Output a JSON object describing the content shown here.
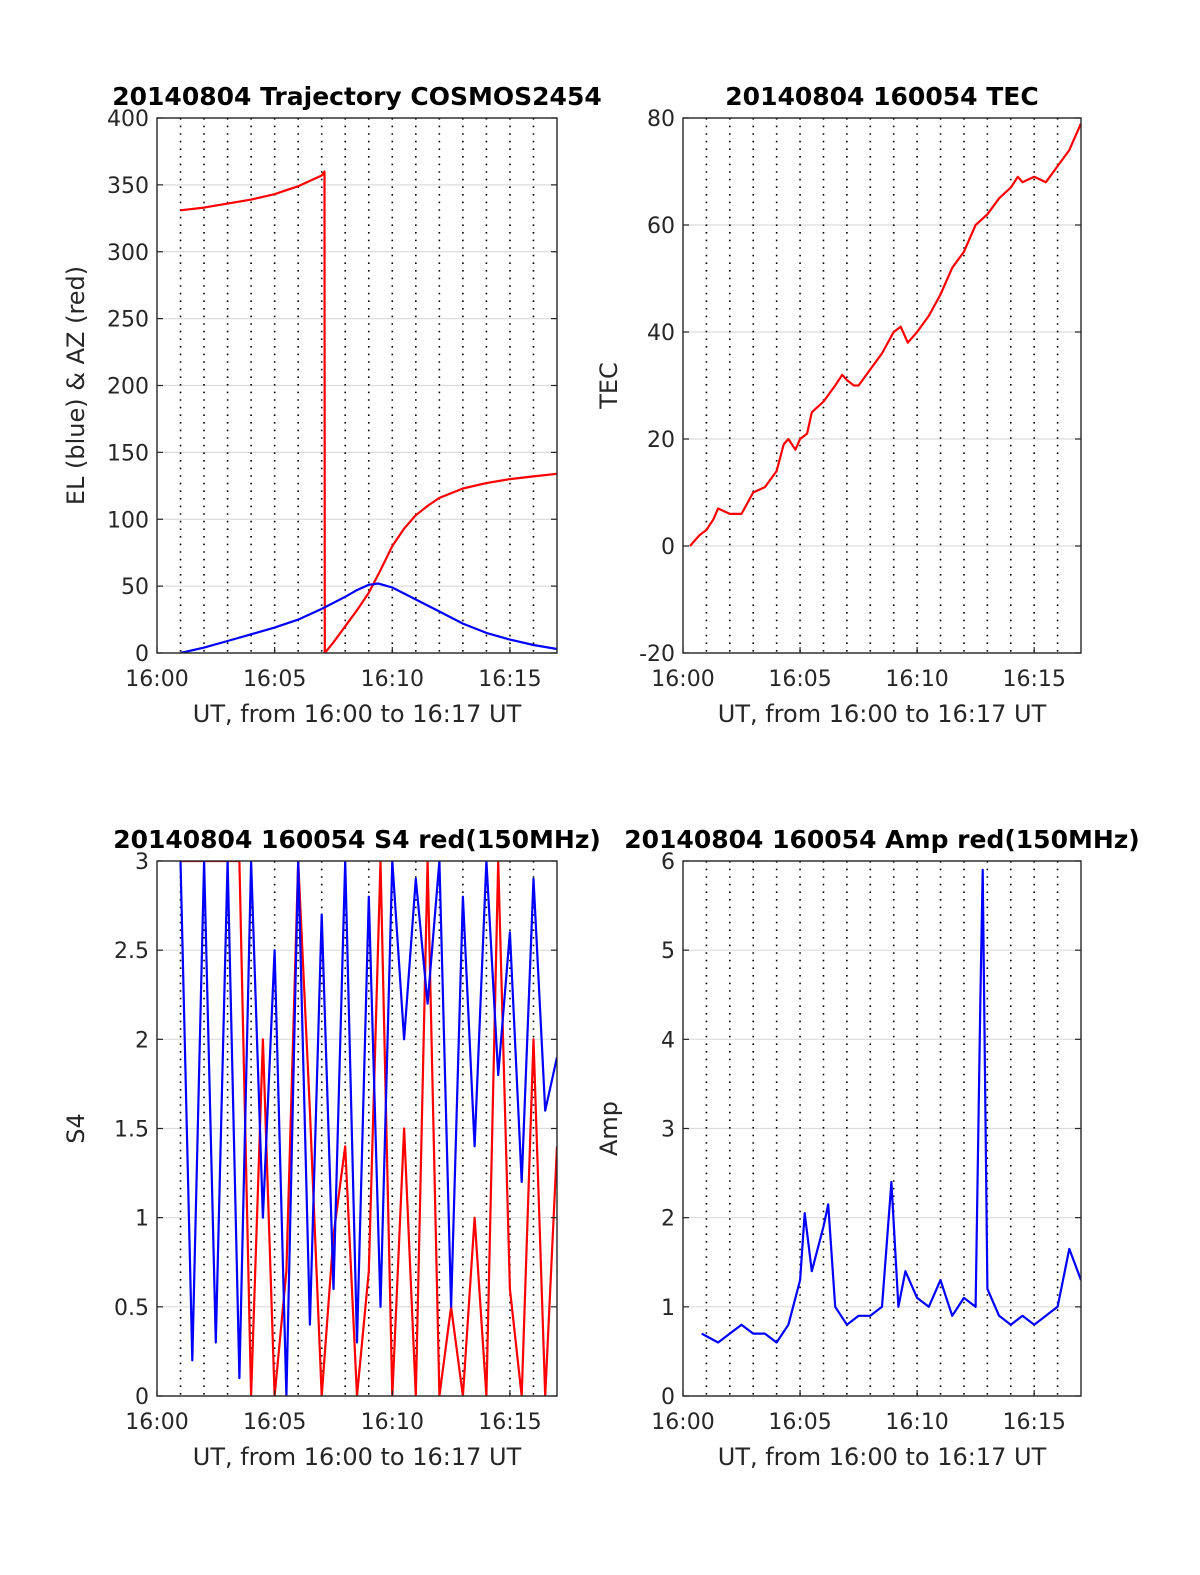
{
  "chart_data": [
    {
      "type": "line",
      "title": "20140804 Trajectory COSMOS2454",
      "xlabel": "UT, from 16:00 to 16:17 UT",
      "ylabel": "EL (blue) & AZ (red)",
      "xlim": [
        0,
        17
      ],
      "ylim": [
        0,
        400
      ],
      "xticks": [
        0,
        5,
        10,
        15
      ],
      "xtick_labels": [
        "16:00",
        "16:05",
        "16:10",
        "16:15"
      ],
      "yticks": [
        0,
        50,
        100,
        150,
        200,
        250,
        300,
        350,
        400
      ],
      "ytick_labels": [
        "0",
        "50",
        "100",
        "150",
        "200",
        "250",
        "300",
        "350",
        "400"
      ],
      "grid": true,
      "series": [
        {
          "color": "#ff0000",
          "x": [
            1.0,
            2.0,
            3.0,
            4.0,
            5.0,
            6.0,
            6.5,
            7.0,
            7.12,
            7.13,
            7.5,
            8.0,
            8.5,
            9.0,
            9.5,
            10.0,
            10.5,
            11.0,
            11.5,
            12.0,
            13.0,
            14.0,
            15.0,
            16.0,
            17.0
          ],
          "y": [
            331,
            333,
            336,
            339,
            343,
            349,
            353,
            357,
            360,
            0,
            8,
            20,
            32,
            45,
            62,
            80,
            93,
            103,
            110,
            116,
            123,
            127,
            130,
            132,
            134
          ]
        },
        {
          "color": "#0000ff",
          "x": [
            1.0,
            2.0,
            3.0,
            4.0,
            5.0,
            6.0,
            7.0,
            8.0,
            8.5,
            9.0,
            9.4,
            10.0,
            11.0,
            12.0,
            13.0,
            14.0,
            15.0,
            16.0,
            17.0
          ],
          "y": [
            0,
            4,
            9,
            14,
            19,
            25,
            33,
            42,
            47,
            51,
            52,
            49,
            40,
            31,
            22,
            15,
            10,
            6,
            3
          ]
        }
      ]
    },
    {
      "type": "line",
      "title": "20140804 160054 TEC",
      "xlabel": "UT, from 16:00 to 16:17 UT",
      "ylabel": "TEC",
      "xlim": [
        0,
        17
      ],
      "ylim": [
        -20,
        80
      ],
      "xticks": [
        0,
        5,
        10,
        15
      ],
      "xtick_labels": [
        "16:00",
        "16:05",
        "16:10",
        "16:15"
      ],
      "yticks": [
        -20,
        0,
        20,
        40,
        60,
        80
      ],
      "ytick_labels": [
        "-20",
        "0",
        "20",
        "40",
        "60",
        "80"
      ],
      "grid": true,
      "series": [
        {
          "color": "#ff0000",
          "x": [
            0.3,
            0.7,
            1.0,
            1.3,
            1.5,
            2.0,
            2.5,
            3.0,
            3.5,
            4.0,
            4.3,
            4.5,
            4.8,
            5.0,
            5.3,
            5.5,
            6.0,
            6.5,
            6.8,
            7.0,
            7.3,
            7.5,
            8.0,
            8.5,
            9.0,
            9.3,
            9.6,
            10.0,
            10.5,
            11.0,
            11.5,
            12.0,
            12.5,
            13.0,
            13.5,
            14.0,
            14.3,
            14.5,
            15.0,
            15.5,
            16.0,
            16.5,
            17.0
          ],
          "y": [
            0,
            2,
            3,
            5,
            7,
            6,
            6,
            10,
            11,
            14,
            19,
            20,
            18,
            20,
            21,
            25,
            27,
            30,
            32,
            31,
            30,
            30,
            33,
            36,
            40,
            41,
            38,
            40,
            43,
            47,
            52,
            55,
            60,
            62,
            65,
            67,
            69,
            68,
            69,
            68,
            71,
            74,
            79
          ]
        }
      ]
    },
    {
      "type": "line",
      "title": "20140804 160054 S4 red(150MHz)",
      "xlabel": "UT, from 16:00 to 16:17 UT",
      "ylabel": "S4",
      "xlim": [
        0,
        17
      ],
      "ylim": [
        0,
        3
      ],
      "xticks": [
        0,
        5,
        10,
        15
      ],
      "xtick_labels": [
        "16:00",
        "16:05",
        "16:10",
        "16:15"
      ],
      "yticks": [
        0,
        0.5,
        1,
        1.5,
        2,
        2.5,
        3
      ],
      "ytick_labels": [
        "0",
        "0.5",
        "1",
        "1.5",
        "2",
        "2.5",
        "3"
      ],
      "grid": true,
      "series": [
        {
          "color": "#ff0000",
          "x": [
            1.0,
            3.5,
            4.0,
            4.5,
            5.0,
            5.5,
            6.0,
            6.5,
            7.0,
            7.5,
            8.0,
            8.5,
            9.0,
            9.5,
            10.0,
            10.5,
            11.0,
            11.5,
            12.0,
            12.5,
            13.0,
            13.5,
            14.0,
            14.5,
            15.0,
            15.5,
            16.0,
            16.5,
            17.0
          ],
          "y": [
            3.0,
            3.0,
            0.0,
            2.0,
            0.0,
            0.7,
            3.0,
            1.6,
            0.0,
            0.9,
            1.4,
            0.0,
            0.7,
            3.0,
            0.0,
            1.5,
            0.0,
            3.0,
            0.0,
            0.5,
            0.0,
            1.0,
            0.0,
            3.0,
            0.6,
            0.0,
            2.0,
            0.0,
            1.4
          ]
        },
        {
          "color": "#0000ff",
          "x": [
            1.0,
            1.5,
            2.0,
            2.5,
            3.0,
            3.5,
            4.0,
            4.5,
            5.0,
            5.5,
            6.0,
            6.5,
            7.0,
            7.5,
            8.0,
            8.5,
            9.0,
            9.5,
            10.0,
            10.5,
            11.0,
            11.5,
            12.0,
            12.5,
            13.0,
            13.5,
            14.0,
            14.5,
            15.0,
            15.5,
            16.0,
            16.5,
            17.0
          ],
          "y": [
            3.0,
            0.2,
            3.0,
            0.3,
            3.0,
            0.1,
            3.0,
            1.0,
            2.5,
            0.0,
            3.0,
            0.4,
            2.7,
            0.6,
            3.0,
            0.3,
            2.8,
            0.5,
            3.0,
            2.0,
            2.9,
            2.2,
            3.0,
            0.5,
            2.8,
            1.4,
            3.0,
            1.8,
            2.6,
            1.2,
            2.9,
            1.6,
            1.9
          ]
        }
      ]
    },
    {
      "type": "line",
      "title": "20140804 160054 Amp red(150MHz)",
      "xlabel": "UT, from 16:00 to 16:17 UT",
      "ylabel": "Amp",
      "xlim": [
        0,
        17
      ],
      "ylim": [
        0,
        6
      ],
      "xticks": [
        0,
        5,
        10,
        15
      ],
      "xtick_labels": [
        "16:00",
        "16:05",
        "16:10",
        "16:15"
      ],
      "yticks": [
        0,
        1,
        2,
        3,
        4,
        5,
        6
      ],
      "ytick_labels": [
        "0",
        "1",
        "2",
        "3",
        "4",
        "5",
        "6"
      ],
      "grid": true,
      "series": [
        {
          "color": "#0000ff",
          "x": [
            0.8,
            1.5,
            2.0,
            2.5,
            3.0,
            3.5,
            4.0,
            4.5,
            5.0,
            5.2,
            5.5,
            6.0,
            6.2,
            6.5,
            7.0,
            7.5,
            8.0,
            8.5,
            8.9,
            9.2,
            9.5,
            10.0,
            10.5,
            11.0,
            11.5,
            12.0,
            12.5,
            12.7,
            12.8,
            12.9,
            13.0,
            13.5,
            14.0,
            14.5,
            15.0,
            15.5,
            16.0,
            16.5,
            17.0
          ],
          "y": [
            0.7,
            0.6,
            0.7,
            0.8,
            0.7,
            0.7,
            0.6,
            0.8,
            1.3,
            2.05,
            1.4,
            1.9,
            2.15,
            1.0,
            0.8,
            0.9,
            0.9,
            1.0,
            2.4,
            1.0,
            1.4,
            1.1,
            1.0,
            1.3,
            0.9,
            1.1,
            1.0,
            4.4,
            5.9,
            3.6,
            1.2,
            0.9,
            0.8,
            0.9,
            0.8,
            0.9,
            1.0,
            1.65,
            1.3
          ]
        }
      ]
    }
  ]
}
